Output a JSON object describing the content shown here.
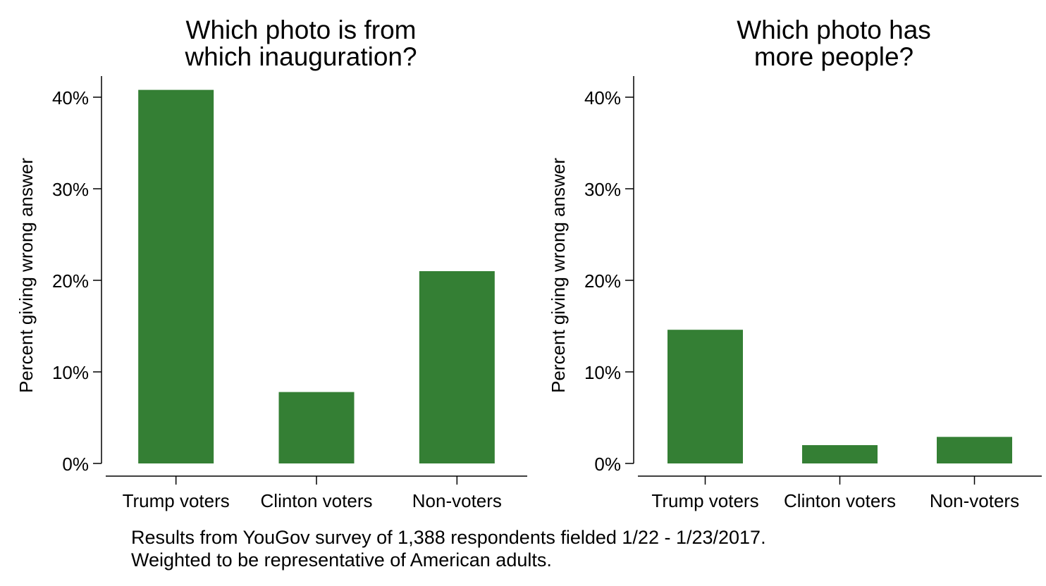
{
  "colors": {
    "bar": "#347f34",
    "axis": "#000000",
    "background": "#ffffff"
  },
  "chart_data": [
    {
      "type": "bar",
      "title_lines": [
        "Which photo is from",
        "which inauguration?"
      ],
      "ylabel": "Percent giving wrong answer",
      "xlabel": "",
      "categories": [
        "Trump voters",
        "Clinton voters",
        "Non-voters"
      ],
      "values": [
        40.8,
        7.8,
        21.0
      ],
      "ylim": [
        0,
        42
      ],
      "yticks": [
        0,
        10,
        20,
        30,
        40
      ],
      "ytick_labels": [
        "0%",
        "10%",
        "20%",
        "30%",
        "40%"
      ],
      "grid": false,
      "legend": "none"
    },
    {
      "type": "bar",
      "title_lines": [
        "Which photo has",
        "more people?"
      ],
      "ylabel": "Percent giving wrong answer",
      "xlabel": "",
      "categories": [
        "Trump voters",
        "Clinton voters",
        "Non-voters"
      ],
      "values": [
        14.6,
        2.0,
        2.9
      ],
      "ylim": [
        0,
        42
      ],
      "yticks": [
        0,
        10,
        20,
        30,
        40
      ],
      "ytick_labels": [
        "0%",
        "10%",
        "20%",
        "30%",
        "40%"
      ],
      "grid": false,
      "legend": "none"
    }
  ],
  "footnote": {
    "line1": "Results from YouGov survey of 1,388 respondents fielded 1/22 - 1/23/2017.",
    "line2": "Weighted to be representative of American adults."
  }
}
